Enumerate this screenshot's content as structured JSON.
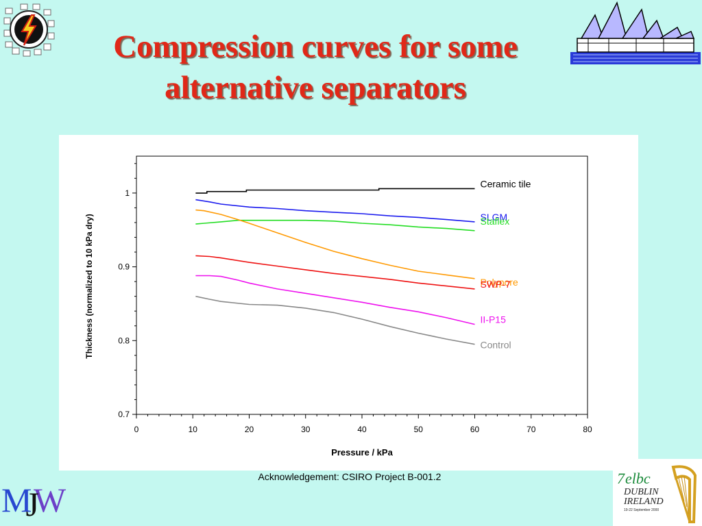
{
  "slide": {
    "title": "Compression curves for some alternative separators",
    "acknowledgement": "Acknowledgement: CSIRO Project B-001.2",
    "corner_logo_text": "MJW",
    "conference_logo_text": "ELBC DUBLIN IRELAND"
  },
  "colors": {
    "background": "#c4f8f0",
    "title": "#e02818"
  },
  "chart_data": {
    "type": "line",
    "title": "",
    "xlabel": "Pressure / kPa",
    "ylabel": "Thickness (normalized to 10 kPa dry)",
    "xlim": [
      0,
      80
    ],
    "ylim": [
      0.7,
      1.05
    ],
    "xticks": [
      0,
      10,
      20,
      30,
      40,
      50,
      60,
      70,
      80
    ],
    "yticks": [
      0.7,
      0.8,
      0.9,
      1
    ],
    "yticklabels": [
      "0.7",
      "0.8",
      "0.9",
      "1"
    ],
    "grid": false,
    "legend": "labels at right end of each line",
    "series": [
      {
        "name": "Ceramic tile",
        "color": "#000000",
        "x": [
          10.5,
          12.5,
          12.5,
          19.5,
          19.5,
          43,
          43,
          60
        ],
        "y": [
          1.0,
          1.0,
          1.002,
          1.002,
          1.004,
          1.004,
          1.006,
          1.006
        ]
      },
      {
        "name": "SLGM",
        "color": "#1a1aee",
        "x": [
          10.5,
          13,
          15,
          20,
          25,
          30,
          35,
          40,
          45,
          50,
          55,
          60
        ],
        "y": [
          0.991,
          0.988,
          0.985,
          0.981,
          0.979,
          0.976,
          0.974,
          0.972,
          0.969,
          0.967,
          0.964,
          0.961
        ]
      },
      {
        "name": "Staflex",
        "color": "#22dd22",
        "x": [
          10.5,
          12,
          15,
          18,
          20,
          25,
          30,
          35,
          40,
          45,
          50,
          55,
          60
        ],
        "y": [
          0.958,
          0.959,
          0.961,
          0.963,
          0.963,
          0.963,
          0.963,
          0.962,
          0.959,
          0.957,
          0.954,
          0.952,
          0.949
        ]
      },
      {
        "name": "Polypore",
        "color": "#ff9900",
        "x": [
          10.5,
          12,
          15,
          18,
          20,
          25,
          30,
          35,
          40,
          45,
          50,
          55,
          60
        ],
        "y": [
          0.977,
          0.976,
          0.971,
          0.964,
          0.959,
          0.946,
          0.933,
          0.921,
          0.911,
          0.902,
          0.894,
          0.889,
          0.884
        ]
      },
      {
        "name": "SWP-7",
        "color": "#ee1111",
        "x": [
          10.5,
          13,
          15,
          20,
          25,
          30,
          35,
          40,
          45,
          50,
          55,
          60
        ],
        "y": [
          0.915,
          0.914,
          0.912,
          0.906,
          0.901,
          0.896,
          0.891,
          0.887,
          0.883,
          0.878,
          0.874,
          0.87
        ]
      },
      {
        "name": "II-P15",
        "color": "#ee11ee",
        "x": [
          10.5,
          13,
          15,
          18,
          20,
          25,
          30,
          35,
          40,
          45,
          50,
          55,
          60
        ],
        "y": [
          0.888,
          0.888,
          0.887,
          0.882,
          0.878,
          0.87,
          0.864,
          0.858,
          0.852,
          0.845,
          0.839,
          0.831,
          0.822
        ]
      },
      {
        "name": "Control",
        "color": "#888888",
        "x": [
          10.5,
          13,
          15,
          20,
          25,
          30,
          35,
          40,
          45,
          50,
          55,
          60
        ],
        "y": [
          0.86,
          0.856,
          0.853,
          0.849,
          0.848,
          0.844,
          0.838,
          0.829,
          0.819,
          0.81,
          0.802,
          0.795
        ]
      }
    ]
  }
}
